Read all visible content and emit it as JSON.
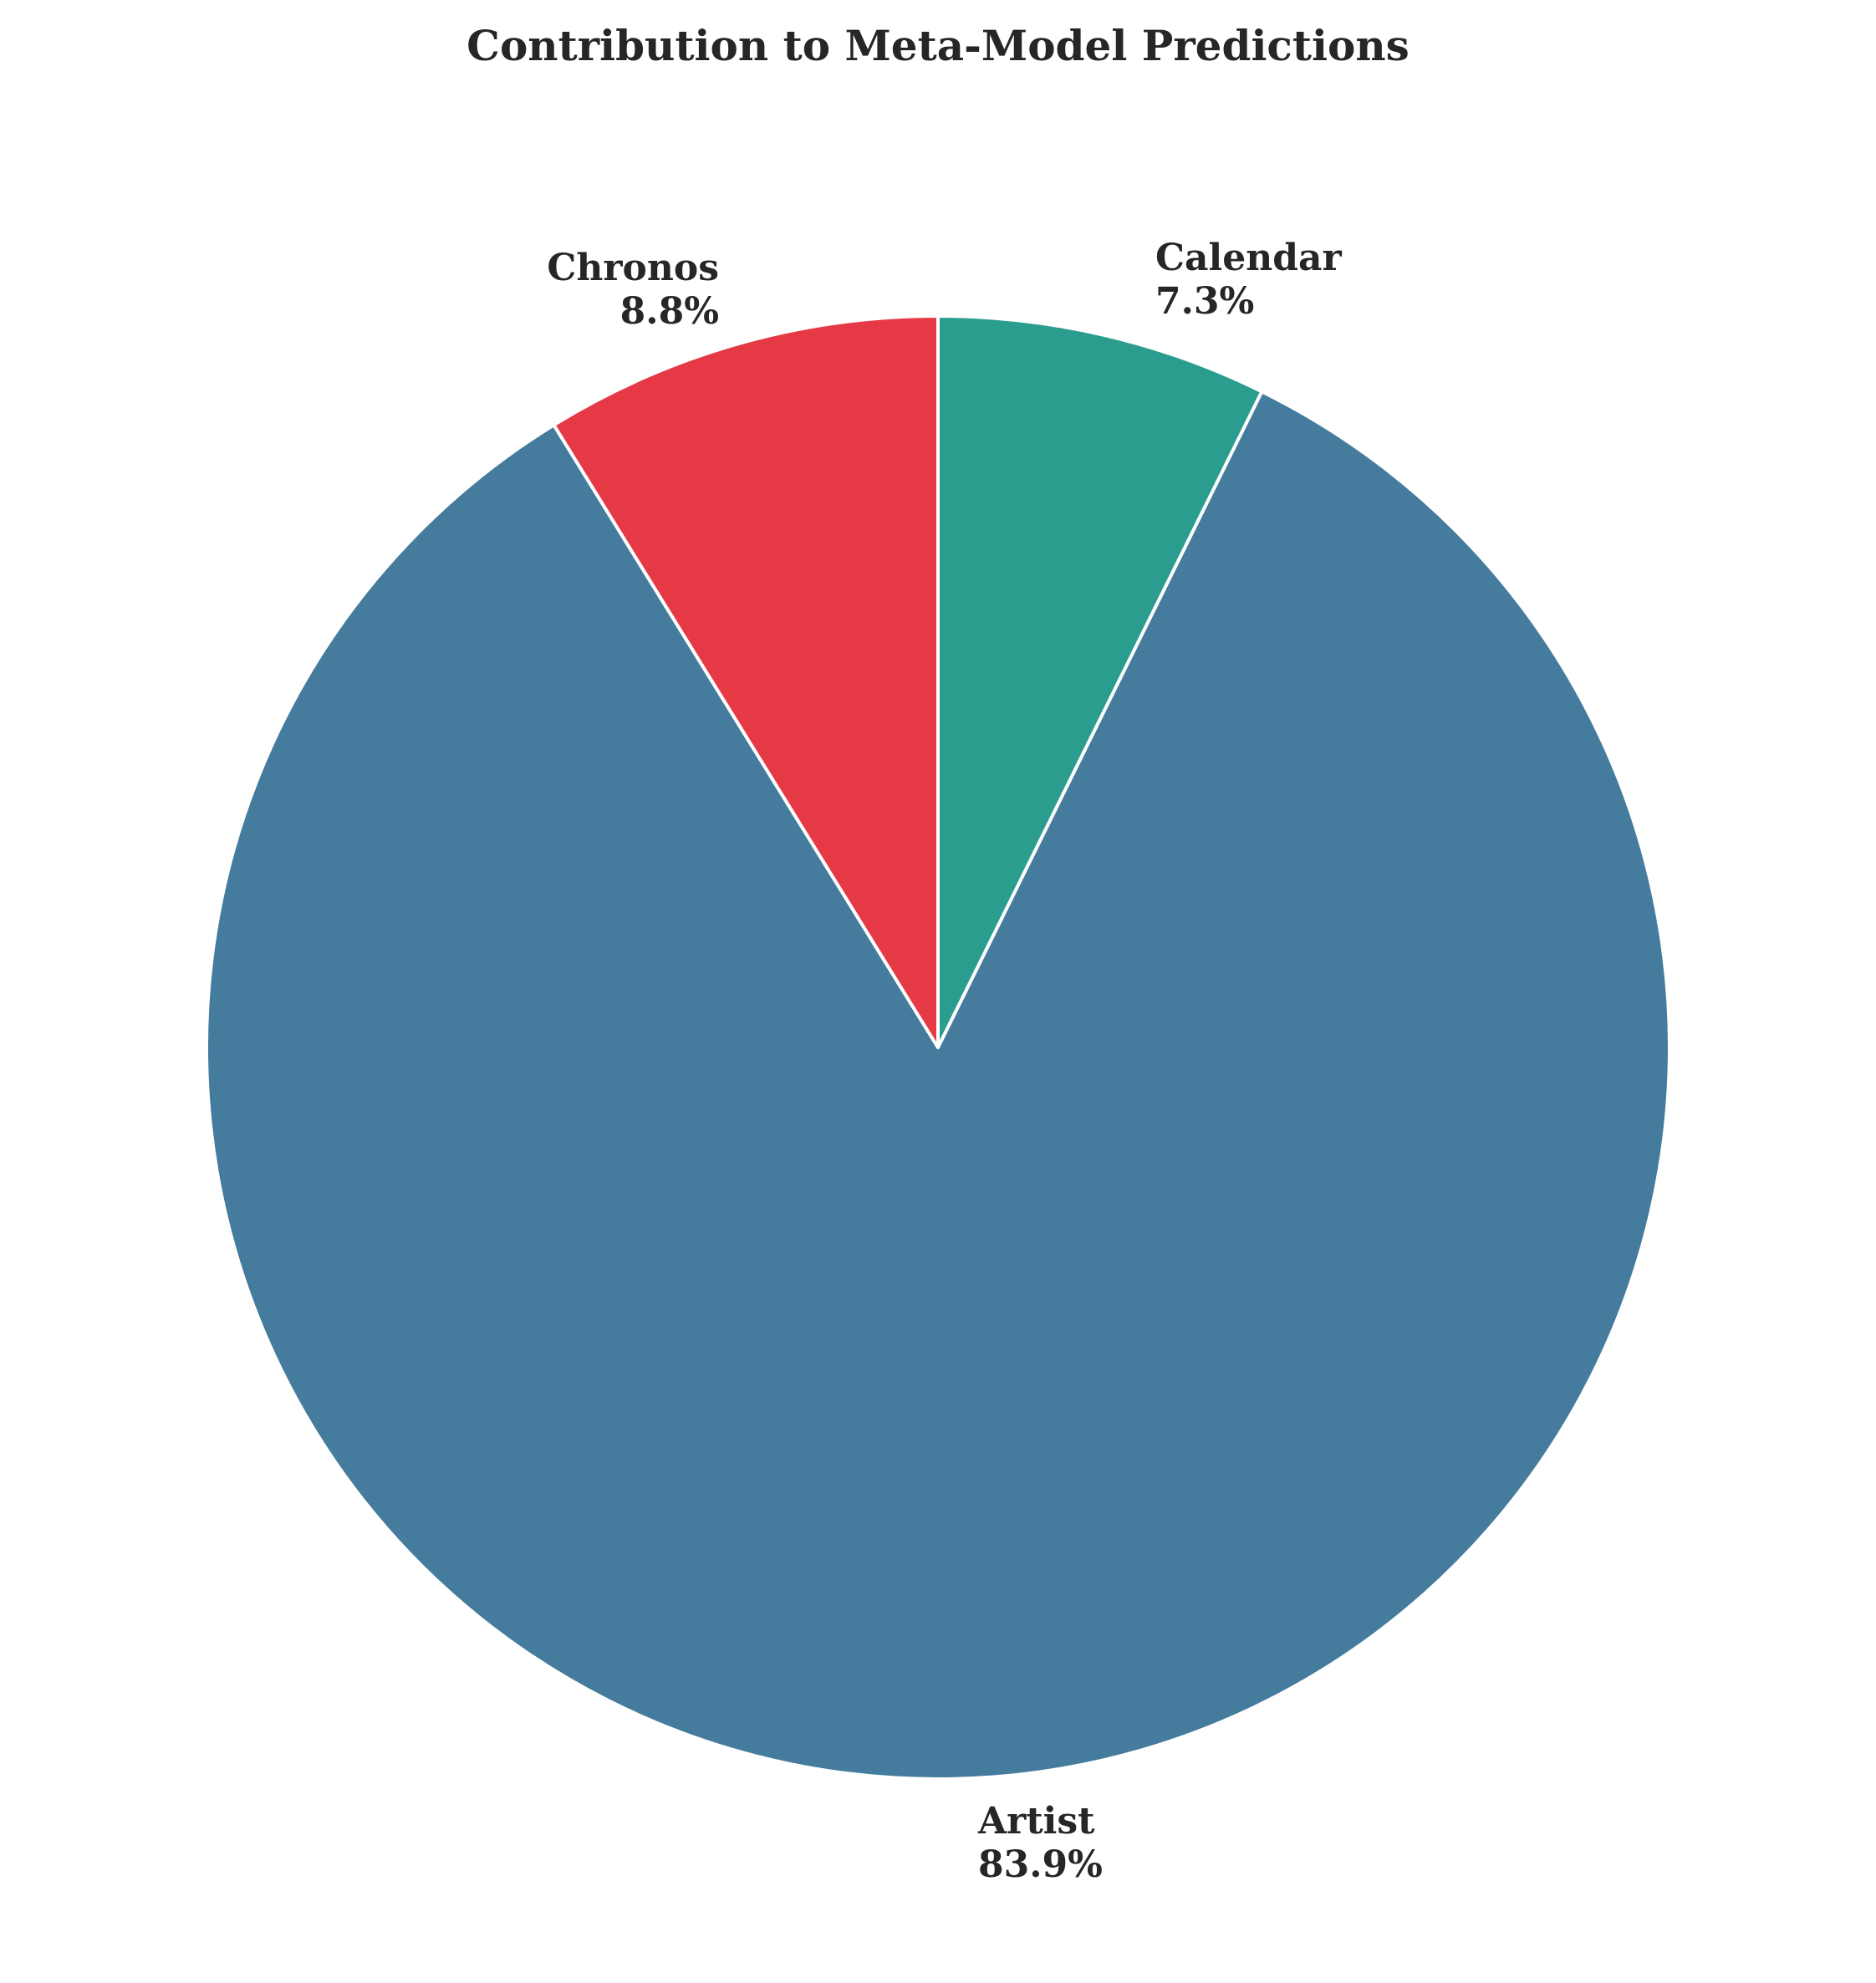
{
  "chart_data": {
    "type": "pie",
    "title": "Contribution to Meta-Model Predictions",
    "start_angle_deg": 90,
    "direction": "clockwise",
    "slices": [
      {
        "name": "Calendar",
        "value": 7.3,
        "pct_label": "7.3%",
        "color": "#2a9d8f"
      },
      {
        "name": "Artist",
        "value": 83.9,
        "pct_label": "83.9%",
        "color": "#457b9d"
      },
      {
        "name": "Chronos",
        "value": 8.8,
        "pct_label": "8.8%",
        "color": "#e63946"
      }
    ],
    "edge_color": "#ffffff"
  }
}
